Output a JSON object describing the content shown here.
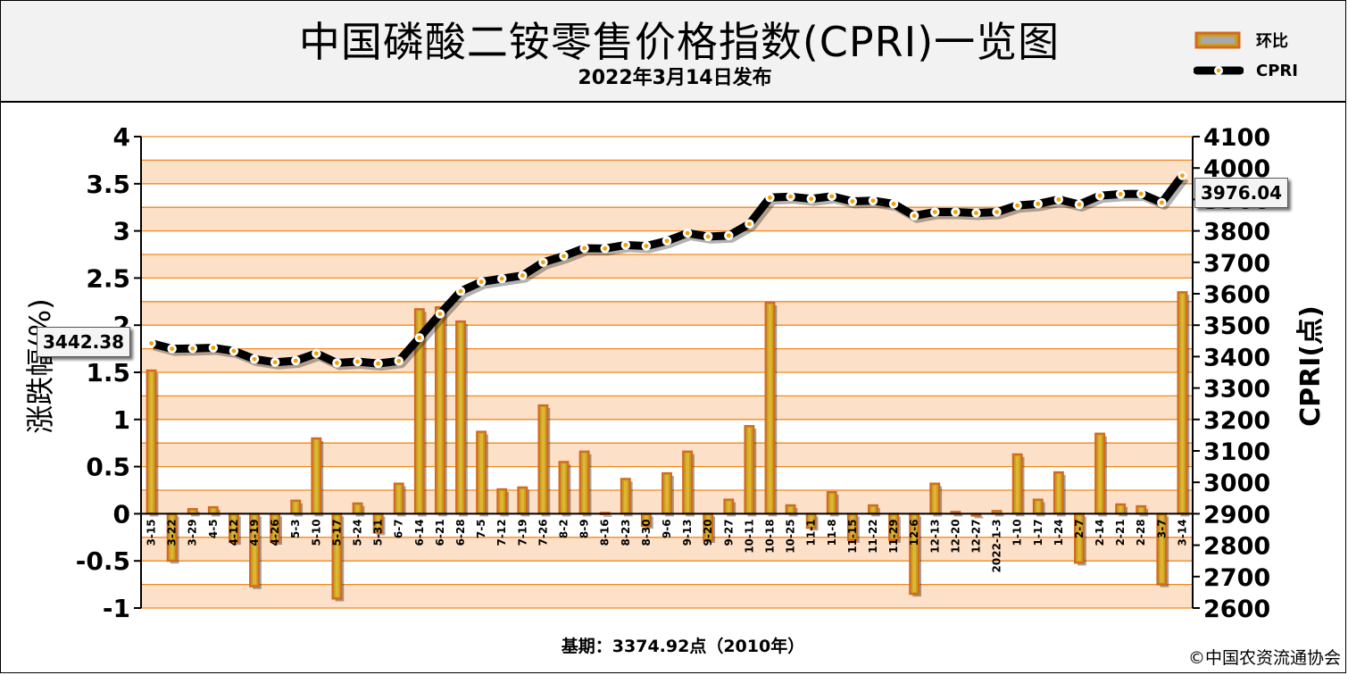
{
  "header": {
    "title": "中国磷酸二铵零售价格指数(CPRI)一览图",
    "subtitle": "2022年3月14日发布"
  },
  "legend": {
    "bar_label": "环比",
    "line_label": "CPRI"
  },
  "footer": {
    "base_note": "基期：3374.92点（2010年）",
    "copyright": "©中国农资流通协会"
  },
  "colors": {
    "band_a": "#fde0c8",
    "band_b": "#ffffff",
    "gridline": "#f08a1e",
    "bar_fill": "#c8a020",
    "bar_edge": "#d2691e",
    "line": "#000000",
    "marker_fill": "#ffffff",
    "marker_center": "#f5a000"
  },
  "chart_data": {
    "type": "bar+line",
    "title": "中国磷酸二铵零售价格指数(CPRI)一览图",
    "categories": [
      "3-15",
      "3-22",
      "3-29",
      "4-5",
      "4-12",
      "4-19",
      "4-26",
      "5-3",
      "5-10",
      "5-17",
      "5-24",
      "5-31",
      "6-7",
      "6-14",
      "6-21",
      "6-28",
      "7-5",
      "7-12",
      "7-19",
      "7-26",
      "8-2",
      "8-9",
      "8-16",
      "8-23",
      "8-30",
      "9-6",
      "9-13",
      "9-20",
      "9-27",
      "10-11",
      "10-18",
      "10-25",
      "11-1",
      "11-8",
      "11-15",
      "11-22",
      "11-29",
      "12-6",
      "12-13",
      "12-20",
      "12-27",
      "2022-1-3",
      "1-10",
      "1-17",
      "1-24",
      "2-7",
      "2-14",
      "2-21",
      "2-28",
      "3-7",
      "3-14"
    ],
    "series": [
      {
        "name": "环比",
        "type": "bar",
        "axis": "left",
        "values": [
          1.52,
          -0.5,
          0.05,
          0.07,
          -0.3,
          -0.77,
          -0.3,
          0.14,
          0.8,
          -0.9,
          0.11,
          -0.2,
          0.32,
          2.17,
          2.19,
          2.04,
          0.87,
          0.26,
          0.28,
          1.15,
          0.55,
          0.66,
          0.01,
          0.37,
          -0.13,
          0.43,
          0.66,
          -0.28,
          0.15,
          0.93,
          2.24,
          0.09,
          -0.15,
          0.23,
          -0.28,
          0.09,
          -0.28,
          -0.85,
          0.32,
          0.02,
          -0.02,
          0.03,
          0.63,
          0.15,
          0.44,
          -0.52,
          0.85,
          0.1,
          0.08,
          -0.75,
          2.35
        ]
      },
      {
        "name": "CPRI",
        "type": "line",
        "axis": "right",
        "values": [
          3442.38,
          3425,
          3426,
          3428,
          3418,
          3392,
          3382,
          3387,
          3410,
          3380,
          3384,
          3378,
          3386,
          3460,
          3536,
          3608,
          3638,
          3648,
          3658,
          3700,
          3720,
          3745,
          3744,
          3755,
          3752,
          3768,
          3793,
          3782,
          3785,
          3822,
          3906,
          3909,
          3902,
          3910,
          3894,
          3896,
          3886,
          3848,
          3860,
          3860,
          3857,
          3860,
          3881,
          3886,
          3900,
          3884,
          3912,
          3917,
          3918,
          3890,
          3976.04
        ]
      }
    ],
    "ylabel_left": "涨跌幅(%)",
    "ylabel_right": "CPRI(点)",
    "ylim_left": [
      -1,
      4
    ],
    "ylim_right": [
      2600,
      4100
    ],
    "yticks_left": [
      "4",
      "3.5",
      "3",
      "2.5",
      "2",
      "1.5",
      "1",
      "0.5",
      "0",
      "-0.5",
      "-1"
    ],
    "yticks_right": [
      "4100",
      "4000",
      "3900",
      "3800",
      "3700",
      "3600",
      "3500",
      "3400",
      "3300",
      "3200",
      "3100",
      "3000",
      "2900",
      "2800",
      "2700",
      "2600"
    ],
    "start_value_label": "3442.38",
    "end_value_label": "3976.04"
  }
}
